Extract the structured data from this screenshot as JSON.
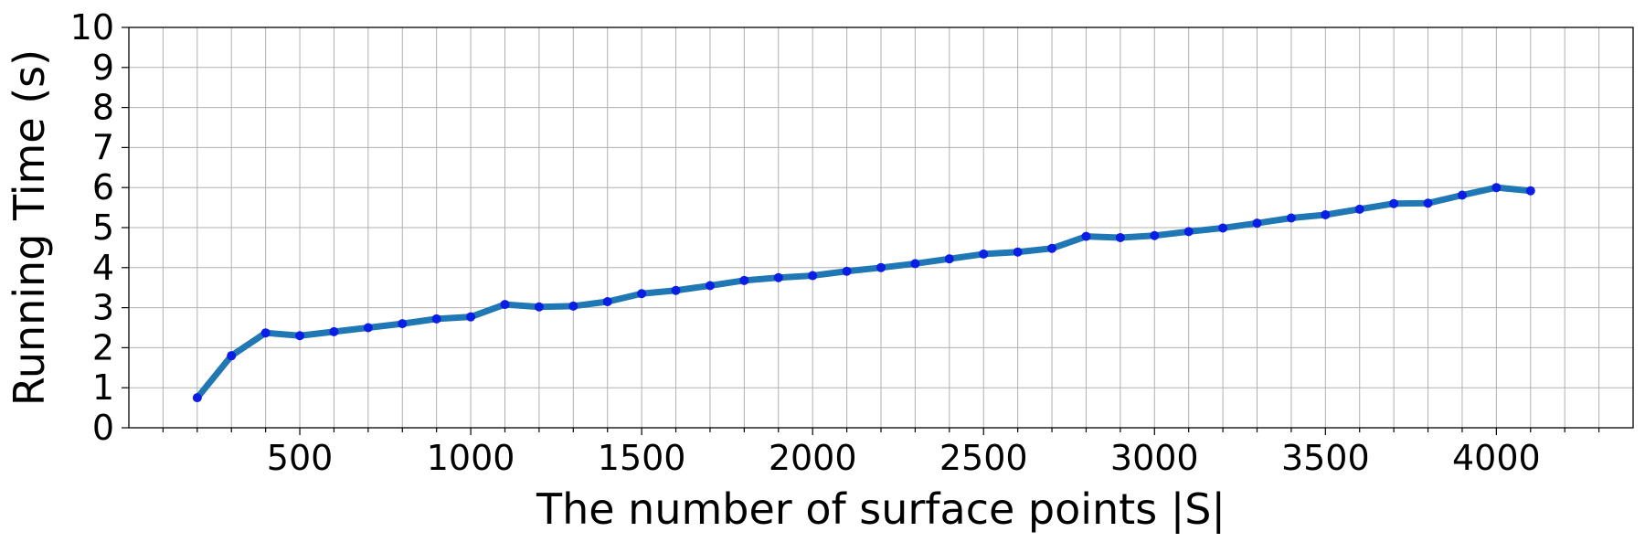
{
  "chart_data": {
    "type": "line",
    "title": "",
    "xlabel": "The number of surface points |S|",
    "ylabel": "Running Time (s)",
    "xlim": [
      0,
      4400
    ],
    "ylim": [
      0,
      10
    ],
    "x_ticks": [
      500,
      1000,
      1500,
      2000,
      2500,
      3000,
      3500,
      4000
    ],
    "x_tick_labels": [
      "500",
      "1000",
      "1500",
      "2000",
      "2500",
      "3000",
      "3500",
      "4000"
    ],
    "y_ticks": [
      0,
      1,
      2,
      3,
      4,
      5,
      6,
      7,
      8,
      9,
      10
    ],
    "y_tick_labels": [
      "0",
      "1",
      "2",
      "3",
      "4",
      "5",
      "6",
      "7",
      "8",
      "9",
      "10"
    ],
    "x_minor_step": 100,
    "grid": true,
    "legend": "none",
    "series": [
      {
        "line_color": "#1f77b4",
        "marker_color": "#0a1ee6",
        "x": [
          200,
          300,
          400,
          500,
          600,
          700,
          800,
          900,
          1000,
          1100,
          1200,
          1300,
          1400,
          1500,
          1600,
          1700,
          1800,
          1900,
          2000,
          2100,
          2200,
          2300,
          2400,
          2500,
          2600,
          2700,
          2800,
          2900,
          3000,
          3100,
          3200,
          3300,
          3400,
          3500,
          3600,
          3700,
          3800,
          3900,
          4000,
          4100,
          4200
        ],
        "y": [
          0.75,
          1.8,
          2.37,
          2.3,
          2.4,
          2.5,
          2.6,
          2.72,
          2.77,
          3.08,
          3.02,
          3.04,
          3.15,
          3.35,
          3.43,
          3.55,
          3.68,
          3.75,
          3.8,
          3.91,
          4.0,
          4.1,
          4.22,
          4.34,
          4.39,
          4.48,
          4.78,
          4.75,
          4.8,
          4.9,
          4.99,
          5.11,
          5.24,
          5.32,
          5.46,
          5.6,
          5.61,
          5.81,
          6.0,
          5.92,
          null
        ]
      }
    ]
  }
}
